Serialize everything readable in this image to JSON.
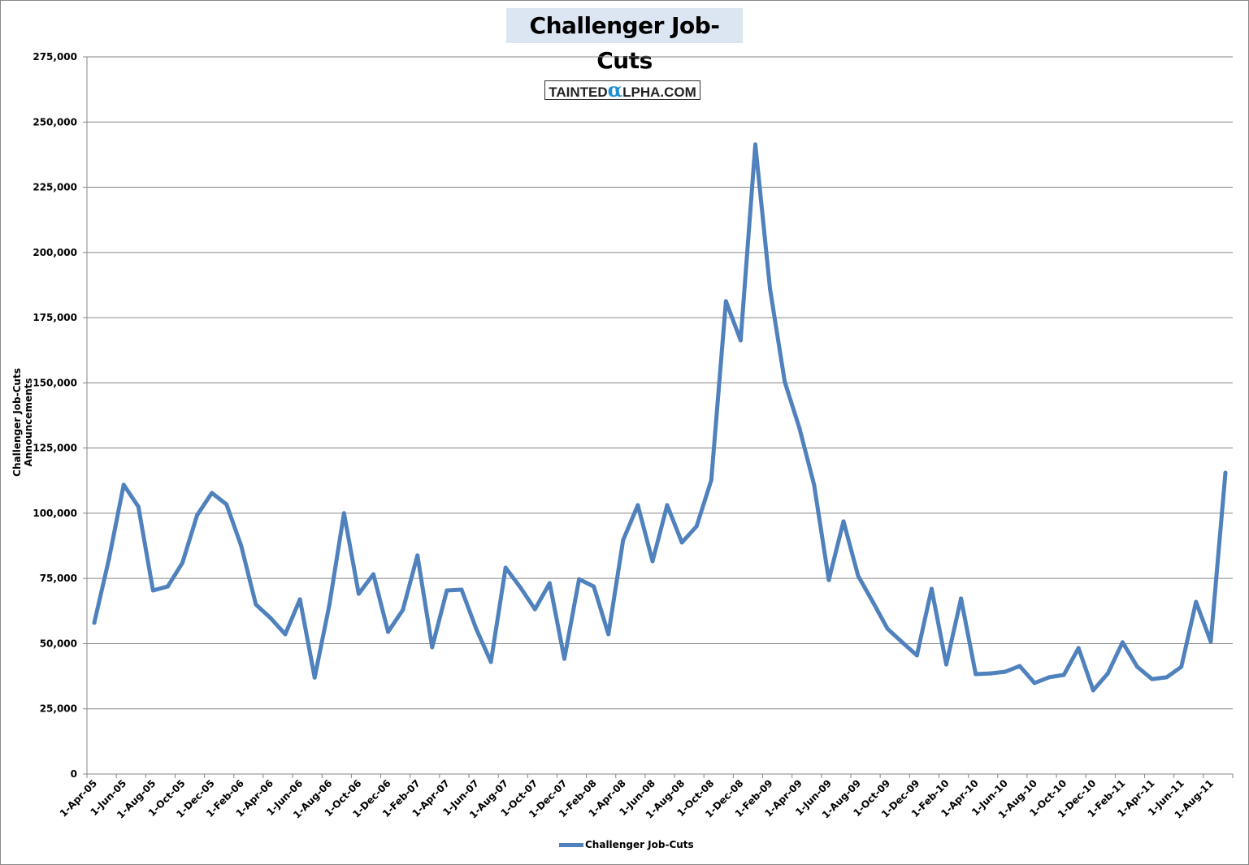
{
  "chart_data": {
    "type": "line",
    "title": "Challenger Job-Cuts",
    "watermark": "TaintedAlpha.com",
    "xlabel": "",
    "ylabel": "Challenger Job-Cuts Announcements",
    "ylim": [
      0,
      275000
    ],
    "yticks": [
      "0",
      "25,000",
      "50,000",
      "75,000",
      "100,000",
      "125,000",
      "150,000",
      "175,000",
      "200,000",
      "225,000",
      "250,000",
      "275,000"
    ],
    "ytick_values": [
      0,
      25000,
      50000,
      75000,
      100000,
      125000,
      150000,
      175000,
      200000,
      225000,
      250000,
      275000
    ],
    "grid": true,
    "legend": "bottom",
    "line_color": "#4f81bd",
    "xtick_labels": [
      "1-Apr-05",
      "1-Jun-05",
      "1-Aug-05",
      "1-Oct-05",
      "1-Dec-05",
      "1-Feb-06",
      "1-Apr-06",
      "1-Jun-06",
      "1-Aug-06",
      "1-Oct-06",
      "1-Dec-06",
      "1-Feb-07",
      "1-Apr-07",
      "1-Jun-07",
      "1-Aug-07",
      "1-Oct-07",
      "1-Dec-07",
      "1-Feb-08",
      "1-Apr-08",
      "1-Jun-08",
      "1-Aug-08",
      "1-Oct-08",
      "1-Dec-08",
      "1-Feb-09",
      "1-Apr-09",
      "1-Jun-09",
      "1-Aug-09",
      "1-Oct-09",
      "1-Dec-09",
      "1-Feb-10",
      "1-Apr-10",
      "1-Jun-10",
      "1-Aug-10",
      "1-Oct-10",
      "1-Dec-10",
      "1-Feb-11",
      "1-Apr-11",
      "1-Jun-11",
      "1-Aug-11"
    ],
    "series": [
      {
        "name": "Challenger Job-Cuts",
        "x": [
          "Apr-05",
          "May-05",
          "Jun-05",
          "Jul-05",
          "Aug-05",
          "Sep-05",
          "Oct-05",
          "Nov-05",
          "Dec-05",
          "Jan-06",
          "Feb-06",
          "Mar-06",
          "Apr-06",
          "May-06",
          "Jun-06",
          "Jul-06",
          "Aug-06",
          "Sep-06",
          "Oct-06",
          "Nov-06",
          "Dec-06",
          "Jan-07",
          "Feb-07",
          "Mar-07",
          "Apr-07",
          "May-07",
          "Jun-07",
          "Jul-07",
          "Aug-07",
          "Sep-07",
          "Oct-07",
          "Nov-07",
          "Dec-07",
          "Jan-08",
          "Feb-08",
          "Mar-08",
          "Apr-08",
          "May-08",
          "Jun-08",
          "Jul-08",
          "Aug-08",
          "Sep-08",
          "Oct-08",
          "Nov-08",
          "Dec-08",
          "Jan-09",
          "Feb-09",
          "Mar-09",
          "Apr-09",
          "May-09",
          "Jun-09",
          "Jul-09",
          "Aug-09",
          "Sep-09",
          "Oct-09",
          "Nov-09",
          "Dec-09",
          "Jan-10",
          "Feb-10",
          "Mar-10",
          "Apr-10",
          "May-10",
          "Jun-10",
          "Jul-10",
          "Aug-10",
          "Sep-10",
          "Oct-10",
          "Nov-10",
          "Dec-10",
          "Jan-11",
          "Feb-11",
          "Mar-11",
          "Apr-11",
          "May-11",
          "Jun-11",
          "Jul-11",
          "Aug-11",
          "Sep-11"
        ],
        "values": [
          58000,
          82500,
          110900,
          102500,
          70400,
          71900,
          81000,
          99300,
          107800,
          103400,
          87500,
          65000,
          59800,
          53600,
          67000,
          37000,
          64800,
          100000,
          69100,
          76600,
          54500,
          62900,
          83800,
          48600,
          70400,
          70700,
          55700,
          43000,
          79100,
          71600,
          63200,
          73200,
          44200,
          74700,
          71900,
          53600,
          89700,
          103100,
          81600,
          103100,
          88800,
          95000,
          112700,
          181300,
          166300,
          241400,
          186000,
          150400,
          132700,
          110900,
          74400,
          96900,
          76000,
          66000,
          55700,
          50500,
          45500,
          71000,
          42000,
          67300,
          38300,
          38600,
          39200,
          41400,
          34900,
          37100,
          38000,
          48300,
          32100,
          38600,
          50500,
          41100,
          36400,
          37100,
          41100,
          66000,
          50800,
          115500
        ]
      }
    ]
  }
}
